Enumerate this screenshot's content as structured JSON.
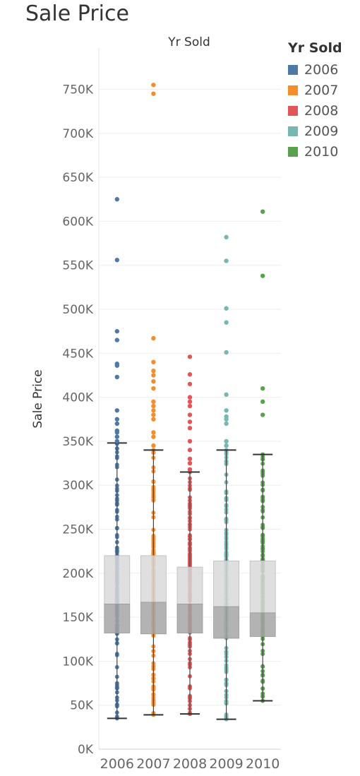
{
  "title": "Sale Price",
  "chart_data": {
    "type": "box",
    "title": "Sale Price",
    "column_header": "Yr Sold",
    "ylabel": "Sale Price",
    "ylim": [
      0,
      790000
    ],
    "y_ticks": [
      0,
      50000,
      100000,
      150000,
      200000,
      250000,
      300000,
      350000,
      400000,
      450000,
      500000,
      550000,
      600000,
      650000,
      700000,
      750000
    ],
    "y_tick_labels": [
      "0K",
      "50K",
      "100K",
      "150K",
      "200K",
      "250K",
      "300K",
      "350K",
      "400K",
      "450K",
      "500K",
      "550K",
      "600K",
      "650K",
      "700K",
      "750K"
    ],
    "grid": true,
    "legend": {
      "title": "Yr Sold",
      "position": "right"
    },
    "categories": [
      "2006",
      "2007",
      "2008",
      "2009",
      "2010"
    ],
    "series": [
      {
        "name": "2006",
        "color": "#4e79a7",
        "box": {
          "min": 35000,
          "q1": 132000,
          "median": 165000,
          "q3": 220000,
          "max": 348000
        },
        "outliers": [
          625000,
          556000,
          475000,
          465000,
          438000,
          436000,
          423000,
          385000,
          375000,
          370000,
          362000,
          360000,
          355000,
          350000
        ]
      },
      {
        "name": "2007",
        "color": "#f28e2b",
        "box": {
          "min": 39000,
          "q1": 131000,
          "median": 167000,
          "q3": 220000,
          "max": 340000
        },
        "outliers": [
          755000,
          745000,
          467000,
          440000,
          430000,
          425000,
          418000,
          410000,
          395000,
          390000,
          385000,
          380000,
          375000,
          360000,
          355000,
          345000
        ]
      },
      {
        "name": "2008",
        "color": "#e15759",
        "box": {
          "min": 40000,
          "q1": 132000,
          "median": 165000,
          "q3": 207000,
          "max": 315000
        },
        "outliers": [
          446000,
          426000,
          415000,
          400000,
          395000,
          390000,
          380000,
          372000,
          365000,
          350000,
          340000,
          330000,
          325000,
          318000
        ]
      },
      {
        "name": "2009",
        "color": "#76b7b2",
        "box": {
          "min": 34000,
          "q1": 126000,
          "median": 162000,
          "q3": 214000,
          "max": 340000
        },
        "outliers": [
          582000,
          555000,
          501000,
          485000,
          451000,
          403000,
          385000,
          378000,
          375000,
          370000,
          350000,
          345000
        ]
      },
      {
        "name": "2010",
        "color": "#59a14f",
        "box": {
          "min": 55000,
          "q1": 128000,
          "median": 155000,
          "q3": 214000,
          "max": 335000
        },
        "outliers": [
          611000,
          538000,
          410000,
          395000,
          380000
        ]
      }
    ]
  }
}
